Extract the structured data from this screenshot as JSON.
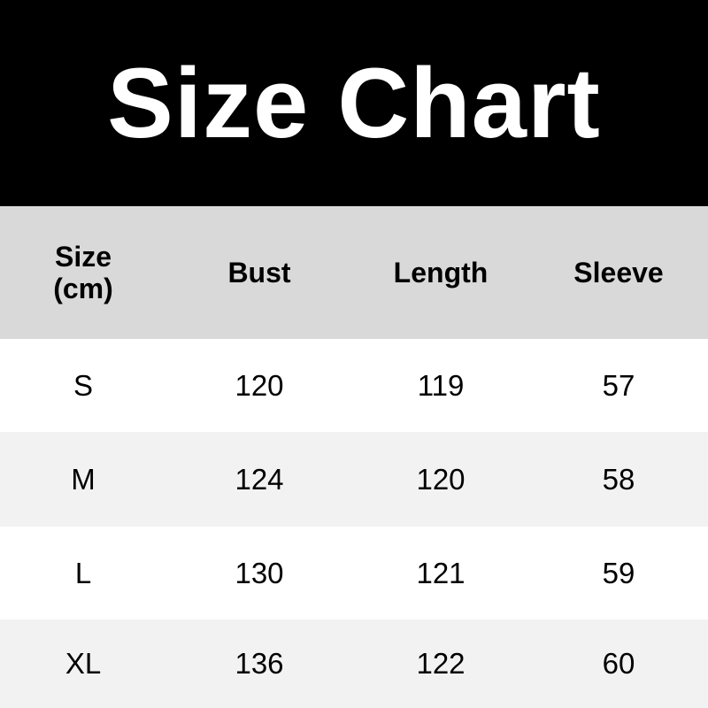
{
  "title": "Size Chart",
  "colors": {
    "title_bg": "#000000",
    "header_bg": "#d9d9d9",
    "alt_row_bg": "#f2f2f2"
  },
  "headers": [
    "Size\n(cm)",
    "Bust",
    "Length",
    "Sleeve"
  ],
  "header_size_line1": "Size",
  "header_size_line2": "(cm)",
  "rows": [
    [
      "S",
      "120",
      "119",
      "57"
    ],
    [
      "M",
      "124",
      "120",
      "58"
    ],
    [
      "L",
      "130",
      "121",
      "59"
    ],
    [
      "XL",
      "136",
      "122",
      "60"
    ]
  ]
}
